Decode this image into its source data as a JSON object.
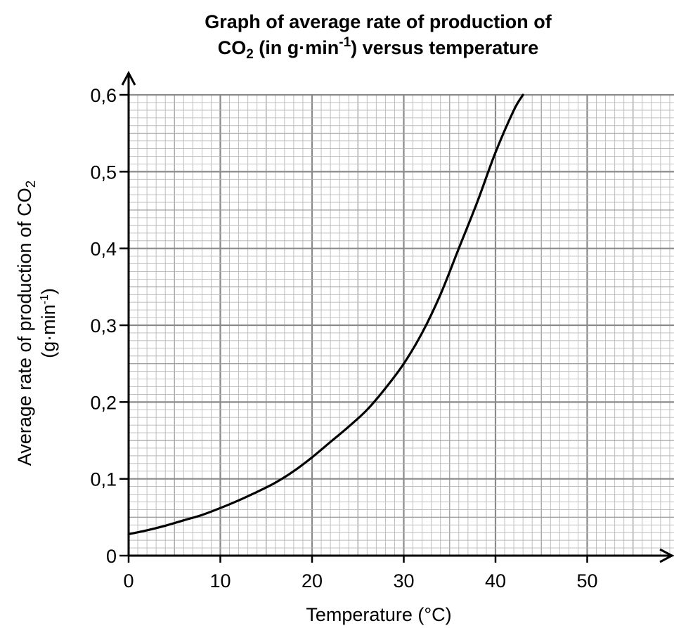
{
  "chart_data": {
    "type": "line",
    "title_line1": "Graph of average rate of production of",
    "title_line2": {
      "part1": "CO",
      "sub": "2",
      "part2": " (in g·min",
      "sup": "-1",
      "part3": ") versus temperature"
    },
    "xlabel": "Temperature (°C)",
    "ylabel": {
      "line1_main": "Average rate of production of CO",
      "line1_sub": "2",
      "line2_main": "(g·min",
      "line2_sup": "-1",
      "line2_end": ")"
    },
    "xlim": [
      0,
      55
    ],
    "ylim": [
      0,
      0.6
    ],
    "x_ticks": [
      0,
      10,
      20,
      30,
      40,
      50
    ],
    "x_tick_labels": [
      "0",
      "10",
      "20",
      "30",
      "40",
      "50"
    ],
    "y_ticks": [
      0,
      0.1,
      0.2,
      0.3,
      0.4,
      0.5,
      0.6
    ],
    "y_tick_labels": [
      "0",
      "0,1",
      "0,2",
      "0,3",
      "0,4",
      "0,5",
      "0,6"
    ],
    "grid": true,
    "series": [
      {
        "color": "#000000",
        "x": [
          0,
          2,
          4,
          6,
          8,
          10,
          12,
          14,
          16,
          18,
          20,
          22,
          24,
          26,
          28,
          30,
          32,
          34,
          36,
          38,
          40,
          42,
          43
        ],
        "y": [
          0.028,
          0.033,
          0.039,
          0.046,
          0.053,
          0.062,
          0.072,
          0.083,
          0.095,
          0.11,
          0.128,
          0.148,
          0.168,
          0.19,
          0.218,
          0.25,
          0.29,
          0.34,
          0.4,
          0.46,
          0.525,
          0.58,
          0.6
        ]
      }
    ]
  }
}
